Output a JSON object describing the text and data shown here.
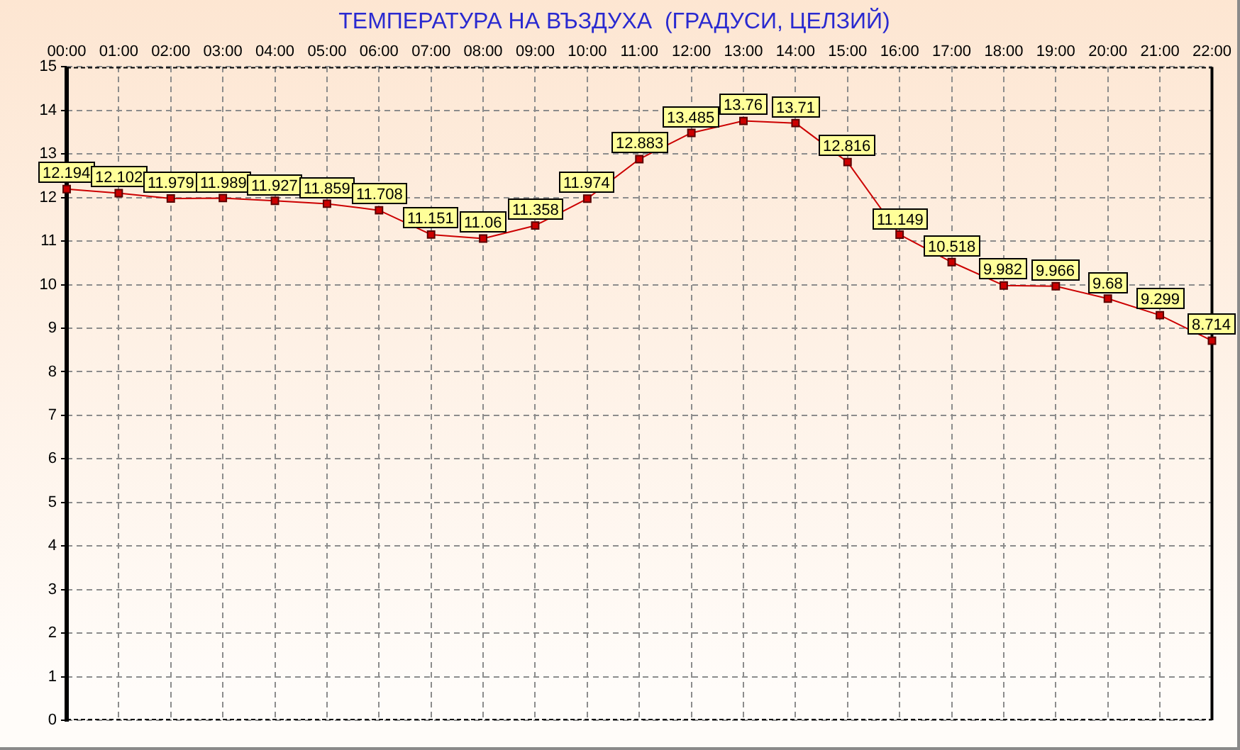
{
  "chart_data": {
    "type": "line",
    "title": "ТЕМПЕРАТУРА НА ВЪЗДУХА  (ГРАДУСИ, ЦЕЛЗИЙ)",
    "categories": [
      "00:00",
      "01:00",
      "02:00",
      "03:00",
      "04:00",
      "05:00",
      "06:00",
      "07:00",
      "08:00",
      "09:00",
      "10:00",
      "11:00",
      "12:00",
      "13:00",
      "14:00",
      "15:00",
      "16:00",
      "17:00",
      "18:00",
      "19:00",
      "20:00",
      "21:00",
      "22:00"
    ],
    "values": [
      12.194,
      12.102,
      11.979,
      11.989,
      11.927,
      11.859,
      11.708,
      11.151,
      11.06,
      11.358,
      11.974,
      12.883,
      13.485,
      13.76,
      13.71,
      12.816,
      11.149,
      10.518,
      9.982,
      9.966,
      9.68,
      9.299,
      8.714
    ],
    "color": "#cc0000",
    "ylim": [
      0,
      15
    ],
    "yticks": [
      0,
      1,
      2,
      3,
      4,
      5,
      6,
      7,
      8,
      9,
      10,
      11,
      12,
      13,
      14,
      15
    ],
    "grid": true,
    "legend": false,
    "marker": "square",
    "line_style": "solid",
    "data_labels": true
  }
}
